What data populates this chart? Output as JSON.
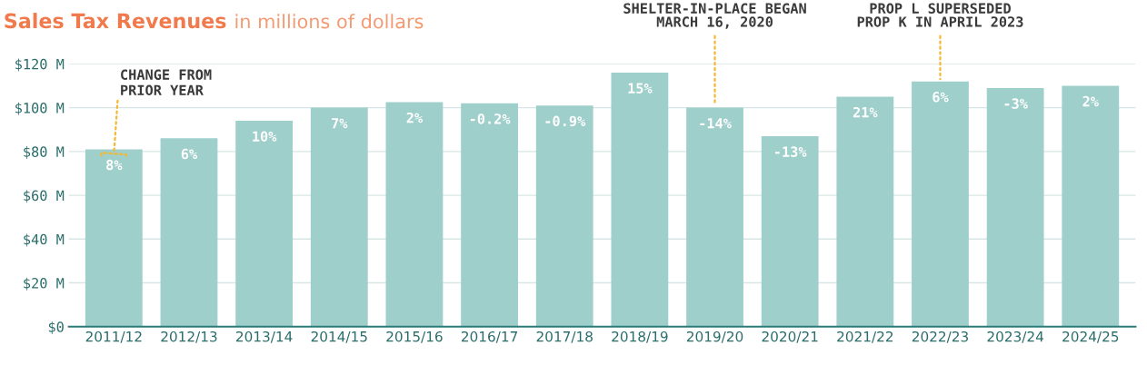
{
  "chart_data": {
    "type": "bar",
    "title": "Sales Tax Revenues",
    "subtitle": "in millions of dollars",
    "categories": [
      "2011/12",
      "2012/13",
      "2013/14",
      "2014/15",
      "2015/16",
      "2016/17",
      "2017/18",
      "2018/19",
      "2019/20",
      "2020/21",
      "2021/22",
      "2022/23",
      "2023/24",
      "2024/25"
    ],
    "values": [
      81,
      86,
      94,
      100,
      102.5,
      102,
      101,
      116,
      100,
      87,
      105,
      112,
      109,
      110
    ],
    "color": "#9fcfcb",
    "ylim": [
      0,
      120
    ],
    "yticks": [
      {
        "value": 0,
        "label": "$0"
      },
      {
        "value": 20,
        "label": "$20 M"
      },
      {
        "value": 40,
        "label": "$40 M"
      },
      {
        "value": 60,
        "label": "$60 M"
      },
      {
        "value": 80,
        "label": "$80 M"
      },
      {
        "value": 100,
        "label": "$100 M"
      },
      {
        "value": 120,
        "label": "$120 M"
      }
    ],
    "grid": "y",
    "annotations": [
      {
        "text": "CHANGE FROM\nPRIOR YEAR",
        "x": "2011/12",
        "y": 79
      },
      {
        "text": "SHELTER-IN-PLACE BEGAN\nMARCH 16, 2020",
        "x": "2019/20",
        "y": 101
      },
      {
        "text": "PROP L SUPERSEDED\nPROP K IN APRIL 2023",
        "x": "2022/23",
        "y": 113
      },
      {
        "text": "8%",
        "x": "2011/12",
        "y": 81
      },
      {
        "text": "6%",
        "x": "2012/13",
        "y": 86
      },
      {
        "text": "10%",
        "x": "2013/14",
        "y": 94
      },
      {
        "text": "7%",
        "x": "2014/15",
        "y": 100
      },
      {
        "text": "2%",
        "x": "2015/16",
        "y": 102.5
      },
      {
        "text": "-0.2%",
        "x": "2016/17",
        "y": 102
      },
      {
        "text": "-0.9%",
        "x": "2017/18",
        "y": 101
      },
      {
        "text": "15%",
        "x": "2018/19",
        "y": 116
      },
      {
        "text": "-14%",
        "x": "2019/20",
        "y": 100
      },
      {
        "text": "-13%",
        "x": "2020/21",
        "y": 87
      },
      {
        "text": "21%",
        "x": "2021/22",
        "y": 105
      },
      {
        "text": "6%",
        "x": "2022/23",
        "y": 112
      },
      {
        "text": "-3%",
        "x": "2023/24",
        "y": 109
      },
      {
        "text": "2%",
        "x": "2024/25",
        "y": 110
      }
    ]
  }
}
